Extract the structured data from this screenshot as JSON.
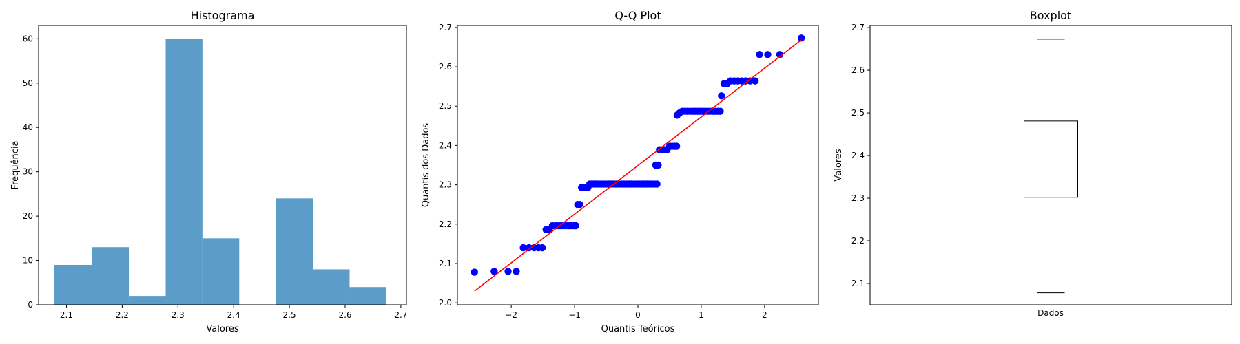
{
  "chart_data": [
    {
      "type": "bar",
      "subtype": "histogram",
      "title": "Histograma",
      "xlabel": "Valores",
      "ylabel": "Frequência",
      "bar_color": "#5b9cc8",
      "xlim": [
        2.05,
        2.71
      ],
      "ylim": [
        0,
        63
      ],
      "xticks": [
        2.1,
        2.2,
        2.3,
        2.4,
        2.5,
        2.6,
        2.7
      ],
      "yticks": [
        0,
        10,
        20,
        30,
        40,
        50,
        60
      ],
      "bins": [
        {
          "start": 2.078,
          "end": 2.146,
          "count": 9
        },
        {
          "start": 2.146,
          "end": 2.212,
          "count": 13
        },
        {
          "start": 2.212,
          "end": 2.278,
          "count": 2
        },
        {
          "start": 2.278,
          "end": 2.344,
          "count": 60
        },
        {
          "start": 2.344,
          "end": 2.41,
          "count": 15
        },
        {
          "start": 2.41,
          "end": 2.476,
          "count": 0
        },
        {
          "start": 2.476,
          "end": 2.542,
          "count": 24
        },
        {
          "start": 2.542,
          "end": 2.608,
          "count": 8
        },
        {
          "start": 2.608,
          "end": 2.674,
          "count": 4
        }
      ]
    },
    {
      "type": "scatter",
      "subtype": "qq-plot",
      "title": "Q-Q Plot",
      "xlabel": "Quantis Teóricos",
      "ylabel": "Quantis dos Dados",
      "point_color": "#0000ff",
      "line_color": "#ff0000",
      "xlim": [
        -2.85,
        2.85
      ],
      "ylim": [
        1.995,
        2.705
      ],
      "xticks": [
        -2,
        -1,
        0,
        1,
        2
      ],
      "xtick_labels": [
        "−2",
        "−1",
        "0",
        "1",
        "2"
      ],
      "yticks": [
        2.0,
        2.1,
        2.2,
        2.3,
        2.4,
        2.5,
        2.6,
        2.7
      ],
      "fit_line": {
        "x": [
          -2.58,
          2.58
        ],
        "y": [
          2.03,
          2.668
        ]
      },
      "points": [
        [
          -2.58,
          2.078
        ],
        [
          -2.27,
          2.08
        ],
        [
          -2.05,
          2.08
        ],
        [
          -1.92,
          2.08
        ],
        [
          -1.81,
          2.14
        ],
        [
          -1.72,
          2.14
        ],
        [
          -1.64,
          2.14
        ],
        [
          -1.57,
          2.14
        ],
        [
          -1.51,
          2.14
        ],
        [
          -1.45,
          2.186
        ],
        [
          -1.4,
          2.186
        ],
        [
          -1.35,
          2.196
        ],
        [
          -1.3,
          2.196
        ],
        [
          -1.25,
          2.196
        ],
        [
          -1.21,
          2.196
        ],
        [
          -1.17,
          2.196
        ],
        [
          -1.13,
          2.196
        ],
        [
          -1.09,
          2.196
        ],
        [
          -1.05,
          2.196
        ],
        [
          -1.01,
          2.196
        ],
        [
          -0.98,
          2.196
        ],
        [
          -0.95,
          2.25
        ],
        [
          -0.92,
          2.25
        ],
        [
          -0.89,
          2.293
        ],
        [
          -0.85,
          2.293
        ],
        [
          -0.82,
          2.293
        ],
        [
          -0.79,
          2.293
        ],
        [
          -0.76,
          2.302
        ],
        [
          -0.73,
          2.302
        ],
        [
          -0.7,
          2.302
        ],
        [
          -0.66,
          2.302
        ],
        [
          -0.62,
          2.302
        ],
        [
          -0.58,
          2.302
        ],
        [
          -0.54,
          2.302
        ],
        [
          -0.5,
          2.302
        ],
        [
          -0.46,
          2.302
        ],
        [
          -0.42,
          2.302
        ],
        [
          -0.38,
          2.302
        ],
        [
          -0.34,
          2.302
        ],
        [
          -0.3,
          2.302
        ],
        [
          -0.26,
          2.302
        ],
        [
          -0.22,
          2.302
        ],
        [
          -0.18,
          2.302
        ],
        [
          -0.14,
          2.302
        ],
        [
          -0.1,
          2.302
        ],
        [
          -0.06,
          2.302
        ],
        [
          -0.02,
          2.302
        ],
        [
          0.02,
          2.302
        ],
        [
          0.06,
          2.302
        ],
        [
          0.1,
          2.302
        ],
        [
          0.14,
          2.302
        ],
        [
          0.18,
          2.302
        ],
        [
          0.22,
          2.302
        ],
        [
          0.26,
          2.302
        ],
        [
          0.3,
          2.302
        ],
        [
          0.28,
          2.35
        ],
        [
          0.32,
          2.35
        ],
        [
          0.34,
          2.389
        ],
        [
          0.38,
          2.389
        ],
        [
          0.42,
          2.389
        ],
        [
          0.46,
          2.389
        ],
        [
          0.5,
          2.398
        ],
        [
          0.54,
          2.398
        ],
        [
          0.58,
          2.398
        ],
        [
          0.61,
          2.398
        ],
        [
          0.62,
          2.477
        ],
        [
          0.66,
          2.483
        ],
        [
          0.7,
          2.487
        ],
        [
          0.74,
          2.487
        ],
        [
          0.78,
          2.487
        ],
        [
          0.82,
          2.487
        ],
        [
          0.86,
          2.487
        ],
        [
          0.9,
          2.487
        ],
        [
          0.94,
          2.487
        ],
        [
          0.98,
          2.487
        ],
        [
          1.02,
          2.487
        ],
        [
          1.06,
          2.487
        ],
        [
          1.1,
          2.487
        ],
        [
          1.14,
          2.487
        ],
        [
          1.18,
          2.487
        ],
        [
          1.22,
          2.487
        ],
        [
          1.26,
          2.487
        ],
        [
          1.3,
          2.487
        ],
        [
          1.32,
          2.526
        ],
        [
          1.36,
          2.557
        ],
        [
          1.41,
          2.557
        ],
        [
          1.46,
          2.564
        ],
        [
          1.52,
          2.564
        ],
        [
          1.58,
          2.564
        ],
        [
          1.64,
          2.564
        ],
        [
          1.7,
          2.564
        ],
        [
          1.77,
          2.564
        ],
        [
          1.85,
          2.564
        ],
        [
          1.92,
          2.631
        ],
        [
          2.05,
          2.631
        ],
        [
          2.24,
          2.631
        ],
        [
          2.58,
          2.673
        ]
      ]
    },
    {
      "type": "boxplot",
      "title": "Boxplot",
      "xlabel": "Dados",
      "ylabel": "Valores",
      "median_color": "#ff7f0e",
      "ylim": [
        2.05,
        2.705
      ],
      "yticks": [
        2.1,
        2.2,
        2.3,
        2.4,
        2.5,
        2.6,
        2.7
      ],
      "stats": {
        "min": 2.078,
        "q1": 2.302,
        "median": 2.302,
        "q3": 2.481,
        "max": 2.673
      }
    }
  ]
}
